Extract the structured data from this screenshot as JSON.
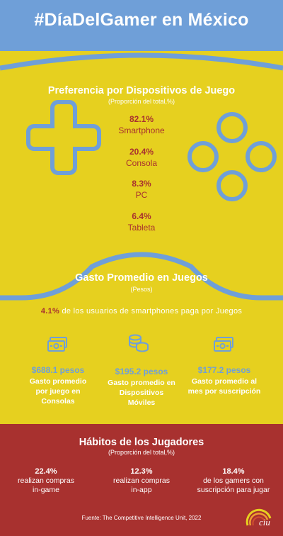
{
  "header": {
    "title": "#DíaDelGamer en México"
  },
  "devices": {
    "title": "Preferencia por Dispositivos de Juego",
    "subtitle": "(Proporción del total,%)",
    "items": [
      {
        "pct": "82.1%",
        "label": "Smartphone"
      },
      {
        "pct": "20.4%",
        "label": "Consola"
      },
      {
        "pct": "8.3%",
        "label": "PC"
      },
      {
        "pct": "6.4%",
        "label": "Tableta"
      }
    ]
  },
  "spending": {
    "title": "Gasto Promedio en Juegos",
    "subtitle": "(Pesos)",
    "note_pct": "4.1%",
    "note_text": " de los usuarios de smartphones paga por Juegos",
    "items": [
      {
        "icon": "cash-icon",
        "amount": "$688.1 pesos",
        "line1": "Gasto promedio",
        "line2": "por juego en",
        "line3": "Consolas"
      },
      {
        "icon": "coins-icon",
        "amount": "$195.2 pesos",
        "line1": "Gasto promedio en",
        "line2": "Dispositivos",
        "line3": "Móviles"
      },
      {
        "icon": "cash-icon",
        "amount": "$177.2 pesos",
        "line1": "Gasto promedio al",
        "line2": "mes por suscripción",
        "line3": ""
      }
    ]
  },
  "habits": {
    "title": "Hábitos de los Jugadores",
    "subtitle": "(Proporción del total,%)",
    "items": [
      {
        "pct": "22.4%",
        "line1": "realizan compras",
        "line2": "in-game"
      },
      {
        "pct": "12.3%",
        "line1": "realizan compras",
        "line2": "in-app"
      },
      {
        "pct": "18.4%",
        "line1": "de los gamers con",
        "line2": "suscripción para jugar"
      }
    ]
  },
  "source": "Fuente: The Competitive Intelligence Unit, 2022",
  "logo": {
    "text": "ciu"
  },
  "colors": {
    "yellow": "#e6d01f",
    "blue": "#6f9fd8",
    "red": "#a8312f",
    "white": "#ffffff"
  }
}
